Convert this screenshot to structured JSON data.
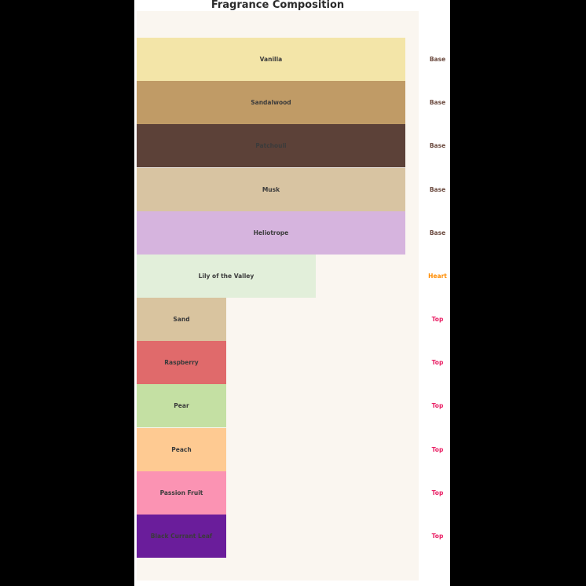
{
  "title": "Fragrance Composition",
  "chart_data": {
    "type": "bar",
    "orientation": "horizontal",
    "title": "Fragrance Composition",
    "xlabel": "",
    "ylabel": "",
    "xlim": [
      0,
      3.15
    ],
    "grid": false,
    "legend": false,
    "categories": [
      "Vanilla",
      "Sandalwood",
      "Patchouli",
      "Musk",
      "Heliotrope",
      "Lily of the Valley",
      "Sand",
      "Raspberry",
      "Pear",
      "Peach",
      "Passion Fruit",
      "Black Currant Leaf"
    ],
    "values": [
      3,
      3,
      3,
      3,
      3,
      2,
      1,
      1,
      1,
      1,
      1,
      1
    ],
    "note_types": [
      "Base",
      "Base",
      "Base",
      "Base",
      "Base",
      "Heart",
      "Top",
      "Top",
      "Top",
      "Top",
      "Top",
      "Top"
    ],
    "bar_colors": [
      "#F3E5A8",
      "#C09B66",
      "#5C4138",
      "#D8C4A2",
      "#D6B4DE",
      "#E2EFDA",
      "#D9C49F",
      "#E06A6B",
      "#C4E0A3",
      "#FECA92",
      "#FB93B3",
      "#6A1D9B"
    ],
    "note_type_colors": {
      "Base": "#6B4A3F",
      "Heart": "#FF8C00",
      "Top": "#E91E63"
    },
    "bar_label_color": "#3B3B3B",
    "axes_background": "#FAF6F0",
    "figure_background": "#FFFFFF",
    "canvas_background": "#000000"
  }
}
